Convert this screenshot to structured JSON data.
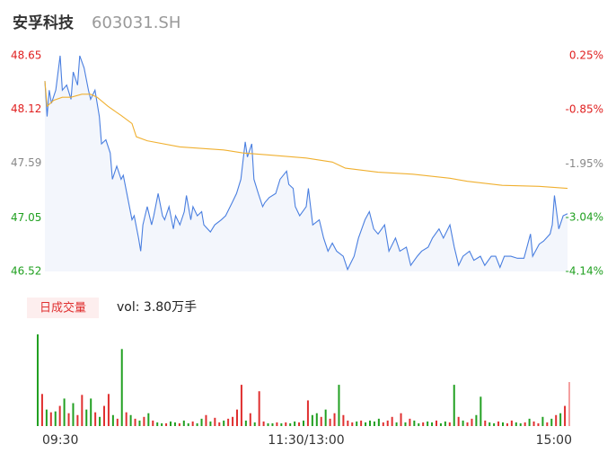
{
  "title": "安孚科技",
  "code": "603031.SH",
  "chart_data": [
    {
      "type": "line",
      "xlim": [
        0,
        240
      ],
      "xticks": [
        {
          "value": 0,
          "label": "09:30"
        },
        {
          "value": 120,
          "label": "11:30/13:00"
        },
        {
          "value": 240,
          "label": "15:00"
        }
      ],
      "ylim": [
        46.52,
        48.65
      ],
      "yticks": [
        46.52,
        47.05,
        47.59,
        48.12,
        48.65
      ],
      "ytick_colors": [
        "#20a020",
        "#20a020",
        "#888888",
        "#e02020",
        "#e02020"
      ],
      "y2lim": [
        -4.14,
        0.25
      ],
      "y2ticks": [
        {
          "value": -4.14,
          "label": "-4.14%"
        },
        {
          "value": -3.04,
          "label": "-3.04%"
        },
        {
          "value": -1.95,
          "label": "-1.95%"
        },
        {
          "value": -0.85,
          "label": "-0.85%"
        },
        {
          "value": 0.25,
          "label": "0.25%"
        }
      ],
      "area_color": "#f3f6fc",
      "series": [
        {
          "color": "#4a7fe0",
          "x": [
            0,
            1,
            2,
            3,
            5,
            7,
            8,
            10,
            12,
            13,
            15,
            16,
            18,
            20,
            21,
            23,
            25,
            26,
            28,
            30,
            31,
            33,
            35,
            36,
            38,
            40,
            41,
            43,
            44,
            45,
            47,
            49,
            50,
            52,
            54,
            55,
            57,
            59,
            60,
            62,
            64,
            65,
            67,
            68,
            70,
            72,
            73,
            76,
            78,
            81,
            83,
            86,
            88,
            90,
            92,
            93,
            95,
            96,
            98,
            100,
            101,
            103,
            106,
            108,
            111,
            112,
            114,
            115,
            117,
            120,
            121,
            123,
            126,
            128,
            130,
            132,
            134,
            137,
            139,
            142,
            144,
            147,
            149,
            151,
            153,
            156,
            158,
            161,
            163,
            166,
            168,
            171,
            173,
            176,
            178,
            181,
            183,
            186,
            188,
            190,
            192,
            195,
            197,
            200,
            202,
            205,
            207,
            209,
            211,
            214,
            217,
            220,
            223,
            224,
            227,
            229,
            232,
            233,
            234,
            236,
            238,
            240
          ],
          "values": [
            48.4,
            48.05,
            48.31,
            48.18,
            48.31,
            48.65,
            48.31,
            48.36,
            48.22,
            48.49,
            48.36,
            48.65,
            48.53,
            48.31,
            48.22,
            48.31,
            48.05,
            47.78,
            47.82,
            47.69,
            47.43,
            47.56,
            47.43,
            47.47,
            47.25,
            47.03,
            47.07,
            46.85,
            46.72,
            46.98,
            47.16,
            46.98,
            47.07,
            47.29,
            47.07,
            47.03,
            47.16,
            46.94,
            47.07,
            46.98,
            47.11,
            47.27,
            47.03,
            47.16,
            47.07,
            47.11,
            46.98,
            46.91,
            46.98,
            47.03,
            47.07,
            47.2,
            47.29,
            47.43,
            47.8,
            47.65,
            47.78,
            47.43,
            47.29,
            47.16,
            47.2,
            47.25,
            47.29,
            47.43,
            47.51,
            47.38,
            47.34,
            47.16,
            47.07,
            47.16,
            47.34,
            46.98,
            47.03,
            46.85,
            46.72,
            46.8,
            46.72,
            46.67,
            46.54,
            46.67,
            46.85,
            47.03,
            47.11,
            46.94,
            46.89,
            46.98,
            46.72,
            46.85,
            46.72,
            46.76,
            46.58,
            46.67,
            46.72,
            46.76,
            46.85,
            46.94,
            46.85,
            46.98,
            46.76,
            46.58,
            46.67,
            46.72,
            46.63,
            46.67,
            46.58,
            46.67,
            46.67,
            46.56,
            46.67,
            46.67,
            46.65,
            46.65,
            46.89,
            46.67,
            46.79,
            46.82,
            46.89,
            46.98,
            47.27,
            46.94,
            47.07,
            47.09
          ]
        },
        {
          "color": "#f0b030",
          "x": [
            0,
            1,
            4,
            8,
            12,
            17,
            21,
            24,
            29,
            35,
            40,
            42,
            47,
            62,
            82,
            91,
            103,
            120,
            132,
            138,
            153,
            169,
            186,
            194,
            210,
            227,
            240
          ],
          "values": [
            48.4,
            48.15,
            48.21,
            48.24,
            48.24,
            48.27,
            48.27,
            48.24,
            48.15,
            48.06,
            47.98,
            47.85,
            47.81,
            47.75,
            47.72,
            47.69,
            47.67,
            47.64,
            47.6,
            47.54,
            47.5,
            47.48,
            47.44,
            47.41,
            47.37,
            47.36,
            47.34
          ]
        }
      ]
    },
    {
      "type": "bar",
      "label": "日成交量",
      "summary": "vol: 3.80万手",
      "x": [
        0,
        2,
        4,
        6,
        8,
        10,
        12,
        14,
        16,
        18,
        20,
        22,
        24,
        26,
        28,
        30,
        32,
        34,
        36,
        38,
        40,
        42,
        44,
        46,
        48,
        50,
        52,
        54,
        56,
        58,
        60,
        62,
        64,
        66,
        68,
        70,
        72,
        74,
        76,
        78,
        80,
        82,
        84,
        86,
        88,
        90,
        92,
        94,
        96,
        98,
        100,
        102,
        104,
        106,
        108,
        110,
        112,
        114,
        116,
        118,
        120,
        122,
        124,
        126,
        128,
        130,
        132,
        134,
        136,
        138,
        140,
        142,
        144,
        146,
        148,
        150,
        152,
        154,
        156,
        158,
        160,
        162,
        164,
        166,
        168,
        170,
        172,
        174,
        176,
        178,
        180,
        182,
        184,
        186,
        188,
        190,
        192,
        194,
        196,
        198,
        200,
        202,
        204,
        206,
        208,
        210,
        212,
        214,
        216,
        218,
        220,
        222,
        224,
        226,
        228,
        230,
        232,
        234,
        236,
        238,
        240
      ],
      "values": [
        100,
        35,
        18,
        15,
        16,
        22,
        30,
        14,
        25,
        12,
        34,
        18,
        30,
        15,
        10,
        22,
        35,
        12,
        8,
        84,
        15,
        12,
        8,
        6,
        10,
        14,
        6,
        4,
        3,
        3,
        5,
        4,
        3,
        6,
        3,
        5,
        3,
        8,
        12,
        5,
        9,
        4,
        6,
        8,
        10,
        18,
        45,
        6,
        14,
        4,
        38,
        5,
        3,
        3,
        4,
        3,
        4,
        3,
        5,
        4,
        6,
        28,
        12,
        14,
        10,
        18,
        8,
        14,
        45,
        12,
        6,
        4,
        5,
        6,
        4,
        6,
        5,
        8,
        4,
        6,
        10,
        4,
        14,
        4,
        8,
        6,
        3,
        4,
        5,
        4,
        6,
        3,
        5,
        4,
        45,
        10,
        6,
        4,
        8,
        12,
        32,
        6,
        4,
        3,
        5,
        4,
        3,
        6,
        4,
        3,
        4,
        8,
        5,
        3,
        10,
        4,
        8,
        12,
        14,
        22,
        48
      ],
      "colors": [
        "#22a022",
        "#e03030",
        "#22a022",
        "#e03030",
        "#22a022",
        "#e03030",
        "#22a022",
        "#e03030",
        "#22a022",
        "#e03030",
        "#e03030",
        "#22a022",
        "#22a022",
        "#e03030",
        "#22a022",
        "#e03030",
        "#e03030",
        "#22a022",
        "#e03030",
        "#22a022",
        "#e03030",
        "#22a022",
        "#e03030",
        "#22a022",
        "#e03030",
        "#22a022",
        "#e03030",
        "#22a022",
        "#22a022",
        "#e03030",
        "#22a022",
        "#22a022",
        "#e03030",
        "#22a022",
        "#22a022",
        "#e03030",
        "#22a022",
        "#22a022",
        "#e03030",
        "#22a022",
        "#e03030",
        "#e03030",
        "#22a022",
        "#e03030",
        "#e03030",
        "#e03030",
        "#e03030",
        "#22a022",
        "#e03030",
        "#22a022",
        "#e03030",
        "#e03030",
        "#22a022",
        "#22a022",
        "#e03030",
        "#22a022",
        "#e03030",
        "#22a022",
        "#22a022",
        "#e03030",
        "#22a022",
        "#e03030",
        "#22a022",
        "#22a022",
        "#e03030",
        "#22a022",
        "#e03030",
        "#e03030",
        "#22a022",
        "#e03030",
        "#e03030",
        "#e03030",
        "#22a022",
        "#e03030",
        "#22a022",
        "#22a022",
        "#22a022",
        "#22a022",
        "#e03030",
        "#e03030",
        "#e03030",
        "#22a022",
        "#e03030",
        "#22a022",
        "#e03030",
        "#22a022",
        "#22a022",
        "#e03030",
        "#22a022",
        "#22a022",
        "#e03030",
        "#22a022",
        "#22a022",
        "#e03030",
        "#22a022",
        "#e03030",
        "#22a022",
        "#e03030",
        "#e03030",
        "#22a022",
        "#22a022",
        "#e03030",
        "#22a022",
        "#22a022",
        "#e03030",
        "#22a022",
        "#e03030",
        "#e03030",
        "#22a022",
        "#22a022",
        "#e03030",
        "#22a022",
        "#e03030",
        "#e03030",
        "#22a022",
        "#e03030",
        "#22a022",
        "#e03030",
        "#22a022",
        "#e03030",
        "#f4a0a0"
      ]
    }
  ]
}
